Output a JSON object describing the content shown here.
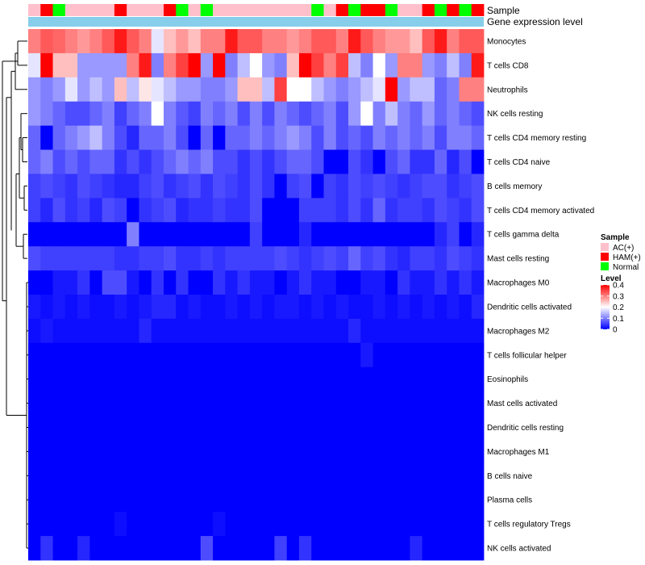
{
  "chart_data": {
    "type": "heatmap",
    "title": "",
    "annotation_rows": [
      "Sample",
      "Gene expression level"
    ],
    "gene_expression_color": "#87CEEB",
    "row_labels": [
      "Monocytes",
      "T cells CD8",
      "Neutrophils",
      "NK cells resting",
      "T cells CD4 memory resting",
      "T cells CD4 naive",
      "B cells memory",
      "T cells CD4 memory activated",
      "T cells gamma delta",
      "Mast cells resting",
      "Macrophages M0",
      "Dendritic cells activated",
      "Macrophages M2",
      "T cells follicular helper",
      "Eosinophils",
      "Mast cells activated",
      "Dendritic cells resting",
      "Macrophages M1",
      "B cells naive",
      "Plasma cells",
      "T cells regulatory  Tregs",
      "NK cells activated"
    ],
    "sample_groups": [
      "AC",
      "HAM",
      "Normal",
      "AC",
      "AC",
      "AC",
      "AC",
      "HAM",
      "AC",
      "AC",
      "AC",
      "HAM",
      "Normal",
      "AC",
      "Normal",
      "AC",
      "AC",
      "AC",
      "AC",
      "AC",
      "AC",
      "AC",
      "AC",
      "Normal",
      "AC",
      "HAM",
      "Normal",
      "HAM",
      "HAM",
      "Normal",
      "AC",
      "AC",
      "HAM",
      "Normal",
      "HAM",
      "Normal",
      "HAM"
    ],
    "values": [
      [
        0.3,
        0.33,
        0.32,
        0.3,
        0.28,
        0.3,
        0.33,
        0.38,
        0.33,
        0.3,
        0.18,
        0.25,
        0.28,
        0.25,
        0.3,
        0.3,
        0.38,
        0.33,
        0.33,
        0.3,
        0.3,
        0.28,
        0.3,
        0.33,
        0.33,
        0.3,
        0.38,
        0.33,
        0.3,
        0.28,
        0.28,
        0.25,
        0.33,
        0.38,
        0.3,
        0.33,
        0.33
      ],
      [
        0.18,
        0.4,
        0.25,
        0.25,
        0.12,
        0.12,
        0.12,
        0.12,
        0.3,
        0.38,
        0.1,
        0.3,
        0.35,
        0.4,
        0.12,
        0.4,
        0.1,
        0.15,
        0.2,
        0.12,
        0.1,
        0.25,
        0.4,
        0.35,
        0.3,
        0.35,
        0.15,
        0.1,
        0.2,
        0.12,
        0.3,
        0.3,
        0.12,
        0.1,
        0.15,
        0.1,
        0.38
      ],
      [
        0.12,
        0.1,
        0.12,
        0.18,
        0.12,
        0.15,
        0.12,
        0.25,
        0.15,
        0.22,
        0.18,
        0.15,
        0.12,
        0.12,
        0.1,
        0.1,
        0.12,
        0.25,
        0.25,
        0.15,
        0.35,
        0.2,
        0.2,
        0.15,
        0.12,
        0.1,
        0.12,
        0.15,
        0.18,
        0.4,
        0.12,
        0.15,
        0.15,
        0.08,
        0.1,
        0.3,
        0.3
      ],
      [
        0.12,
        0.1,
        0.08,
        0.06,
        0.06,
        0.08,
        0.1,
        0.05,
        0.08,
        0.1,
        0.2,
        0.1,
        0.07,
        0.05,
        0.1,
        0.08,
        0.1,
        0.06,
        0.1,
        0.06,
        0.1,
        0.08,
        0.06,
        0.08,
        0.1,
        0.06,
        0.12,
        0.2,
        0.1,
        0.15,
        0.1,
        0.08,
        0.12,
        0.08,
        0.1,
        0.08,
        0.06
      ],
      [
        0.08,
        0.0,
        0.08,
        0.1,
        0.12,
        0.15,
        0.1,
        0.06,
        0.03,
        0.08,
        0.08,
        0.1,
        0.06,
        0.0,
        0.08,
        0.0,
        0.08,
        0.08,
        0.1,
        0.08,
        0.1,
        0.12,
        0.1,
        0.06,
        0.1,
        0.06,
        0.08,
        0.06,
        0.1,
        0.08,
        0.1,
        0.08,
        0.1,
        0.06,
        0.1,
        0.1,
        0.08
      ],
      [
        0.08,
        0.1,
        0.06,
        0.08,
        0.06,
        0.08,
        0.08,
        0.04,
        0.06,
        0.04,
        0.06,
        0.08,
        0.1,
        0.08,
        0.1,
        0.06,
        0.06,
        0.04,
        0.06,
        0.04,
        0.06,
        0.08,
        0.08,
        0.06,
        0.0,
        0.0,
        0.06,
        0.04,
        0.0,
        0.06,
        0.08,
        0.04,
        0.04,
        0.08,
        0.03,
        0.06,
        0.0
      ],
      [
        0.05,
        0.06,
        0.05,
        0.04,
        0.06,
        0.05,
        0.04,
        0.03,
        0.03,
        0.05,
        0.06,
        0.04,
        0.05,
        0.06,
        0.04,
        0.06,
        0.05,
        0.04,
        0.06,
        0.04,
        0.0,
        0.05,
        0.06,
        0.0,
        0.05,
        0.04,
        0.06,
        0.05,
        0.06,
        0.05,
        0.04,
        0.05,
        0.06,
        0.06,
        0.04,
        0.05,
        0.06
      ],
      [
        0.05,
        0.03,
        0.06,
        0.04,
        0.05,
        0.03,
        0.06,
        0.05,
        0.0,
        0.04,
        0.05,
        0.06,
        0.03,
        0.04,
        0.04,
        0.05,
        0.04,
        0.04,
        0.06,
        0.0,
        0.0,
        0.0,
        0.05,
        0.05,
        0.05,
        0.04,
        0.06,
        0.04,
        0.08,
        0.04,
        0.05,
        0.05,
        0.04,
        0.06,
        0.05,
        0.04,
        0.06
      ],
      [
        0.0,
        0.0,
        0.0,
        0.0,
        0.0,
        0.0,
        0.0,
        0.0,
        0.1,
        0.0,
        0.0,
        0.0,
        0.0,
        0.0,
        0.0,
        0.0,
        0.0,
        0.0,
        0.05,
        0.0,
        0.0,
        0.0,
        0.03,
        0.0,
        0.0,
        0.0,
        0.0,
        0.0,
        0.0,
        0.0,
        0.0,
        0.0,
        0.0,
        0.03,
        0.05,
        0.0,
        0.03
      ],
      [
        0.06,
        0.05,
        0.05,
        0.05,
        0.05,
        0.05,
        0.05,
        0.04,
        0.04,
        0.05,
        0.05,
        0.06,
        0.04,
        0.04,
        0.05,
        0.04,
        0.05,
        0.05,
        0.05,
        0.05,
        0.06,
        0.05,
        0.04,
        0.05,
        0.06,
        0.05,
        0.08,
        0.05,
        0.06,
        0.04,
        0.03,
        0.05,
        0.05,
        0.04,
        0.06,
        0.05,
        0.04
      ],
      [
        0.0,
        0.0,
        0.02,
        0.02,
        0.04,
        0.0,
        0.06,
        0.06,
        0.02,
        0.0,
        0.04,
        0.0,
        0.04,
        0.0,
        0.0,
        0.04,
        0.02,
        0.04,
        0.02,
        0.02,
        0.0,
        0.02,
        0.04,
        0.02,
        0.02,
        0.0,
        0.0,
        0.02,
        0.02,
        0.0,
        0.04,
        0.02,
        0.02,
        0.04,
        0.02,
        0.04,
        0.02
      ],
      [
        0.02,
        0.01,
        0.02,
        0.01,
        0.02,
        0.01,
        0.01,
        0.02,
        0.01,
        0.02,
        0.03,
        0.03,
        0.01,
        0.02,
        0.01,
        0.01,
        0.02,
        0.01,
        0.02,
        0.01,
        0.02,
        0.02,
        0.01,
        0.02,
        0.01,
        0.02,
        0.01,
        0.01,
        0.02,
        0.01,
        0.02,
        0.01,
        0.02,
        0.01,
        0.02,
        0.01,
        0.03
      ],
      [
        0.01,
        0.02,
        0.01,
        0.01,
        0.01,
        0.01,
        0.01,
        0.01,
        0.01,
        0.03,
        0.01,
        0.01,
        0.01,
        0.01,
        0.01,
        0.01,
        0.01,
        0.01,
        0.01,
        0.01,
        0.01,
        0.01,
        0.01,
        0.01,
        0.01,
        0.01,
        0.03,
        0.01,
        0.01,
        0.01,
        0.01,
        0.01,
        0.01,
        0.01,
        0.01,
        0.01,
        0.01
      ],
      [
        0,
        0,
        0,
        0,
        0,
        0,
        0,
        0,
        0,
        0,
        0,
        0,
        0,
        0,
        0,
        0,
        0,
        0,
        0,
        0,
        0,
        0,
        0,
        0,
        0,
        0,
        0,
        0.02,
        0,
        0,
        0,
        0,
        0,
        0,
        0,
        0,
        0
      ],
      [
        0,
        0,
        0,
        0,
        0,
        0,
        0,
        0,
        0,
        0,
        0,
        0,
        0,
        0,
        0,
        0,
        0,
        0,
        0,
        0,
        0,
        0,
        0,
        0,
        0,
        0,
        0,
        0,
        0,
        0,
        0,
        0,
        0,
        0,
        0,
        0,
        0
      ],
      [
        0,
        0,
        0,
        0,
        0,
        0,
        0,
        0,
        0,
        0,
        0,
        0,
        0,
        0,
        0,
        0,
        0,
        0,
        0,
        0,
        0,
        0,
        0,
        0,
        0,
        0,
        0,
        0,
        0,
        0,
        0,
        0,
        0,
        0,
        0,
        0,
        0
      ],
      [
        0,
        0,
        0,
        0,
        0,
        0,
        0,
        0,
        0,
        0,
        0,
        0,
        0,
        0,
        0,
        0,
        0,
        0,
        0,
        0,
        0,
        0,
        0,
        0,
        0,
        0,
        0,
        0,
        0,
        0,
        0,
        0,
        0,
        0,
        0,
        0,
        0
      ],
      [
        0,
        0,
        0,
        0,
        0,
        0,
        0,
        0,
        0,
        0,
        0,
        0,
        0,
        0,
        0,
        0,
        0,
        0,
        0,
        0,
        0,
        0,
        0,
        0,
        0,
        0,
        0,
        0,
        0,
        0,
        0,
        0,
        0,
        0,
        0,
        0,
        0
      ],
      [
        0,
        0,
        0,
        0,
        0,
        0,
        0,
        0,
        0,
        0,
        0,
        0,
        0,
        0,
        0,
        0,
        0,
        0,
        0,
        0,
        0,
        0,
        0,
        0,
        0,
        0,
        0,
        0,
        0,
        0,
        0,
        0,
        0,
        0,
        0,
        0,
        0
      ],
      [
        0,
        0,
        0,
        0,
        0,
        0,
        0,
        0,
        0,
        0,
        0,
        0,
        0,
        0,
        0,
        0,
        0,
        0,
        0,
        0,
        0,
        0,
        0,
        0,
        0,
        0,
        0,
        0,
        0,
        0,
        0,
        0,
        0,
        0,
        0,
        0,
        0
      ],
      [
        0,
        0,
        0,
        0,
        0,
        0,
        0,
        0.01,
        0,
        0,
        0,
        0,
        0,
        0,
        0,
        0.01,
        0,
        0,
        0,
        0,
        0,
        0,
        0,
        0,
        0,
        0,
        0,
        0,
        0,
        0,
        0,
        0,
        0,
        0,
        0,
        0,
        0
      ],
      [
        0,
        0.04,
        0,
        0,
        0.03,
        0,
        0,
        0,
        0,
        0,
        0,
        0,
        0,
        0,
        0.06,
        0,
        0,
        0,
        0,
        0,
        0.05,
        0,
        0.04,
        0,
        0,
        0,
        0,
        0,
        0,
        0,
        0,
        0.03,
        0,
        0,
        0,
        0,
        0
      ]
    ],
    "legend": {
      "sample_title": "Sample",
      "sample_entries": [
        {
          "key": "AC",
          "label": "AC(+)",
          "color": "#FFC0CB"
        },
        {
          "key": "HAM",
          "label": "HAM(+)",
          "color": "#FF0000"
        },
        {
          "key": "Normal",
          "label": "Normal",
          "color": "#00FF00"
        }
      ],
      "level_title": "Level",
      "level_ticks": [
        {
          "value": 0.4,
          "label": "0.4"
        },
        {
          "value": 0.3,
          "label": "0.3"
        },
        {
          "value": 0.2,
          "label": "0.2"
        },
        {
          "value": 0.1,
          "label": "0.1"
        },
        {
          "value": 0,
          "label": "0"
        }
      ],
      "color_scale": {
        "min": 0,
        "mid": 0.2,
        "max": 0.4,
        "low": "#0000FF",
        "midcolor": "#FFFFFF",
        "high": "#FF0000"
      }
    }
  }
}
